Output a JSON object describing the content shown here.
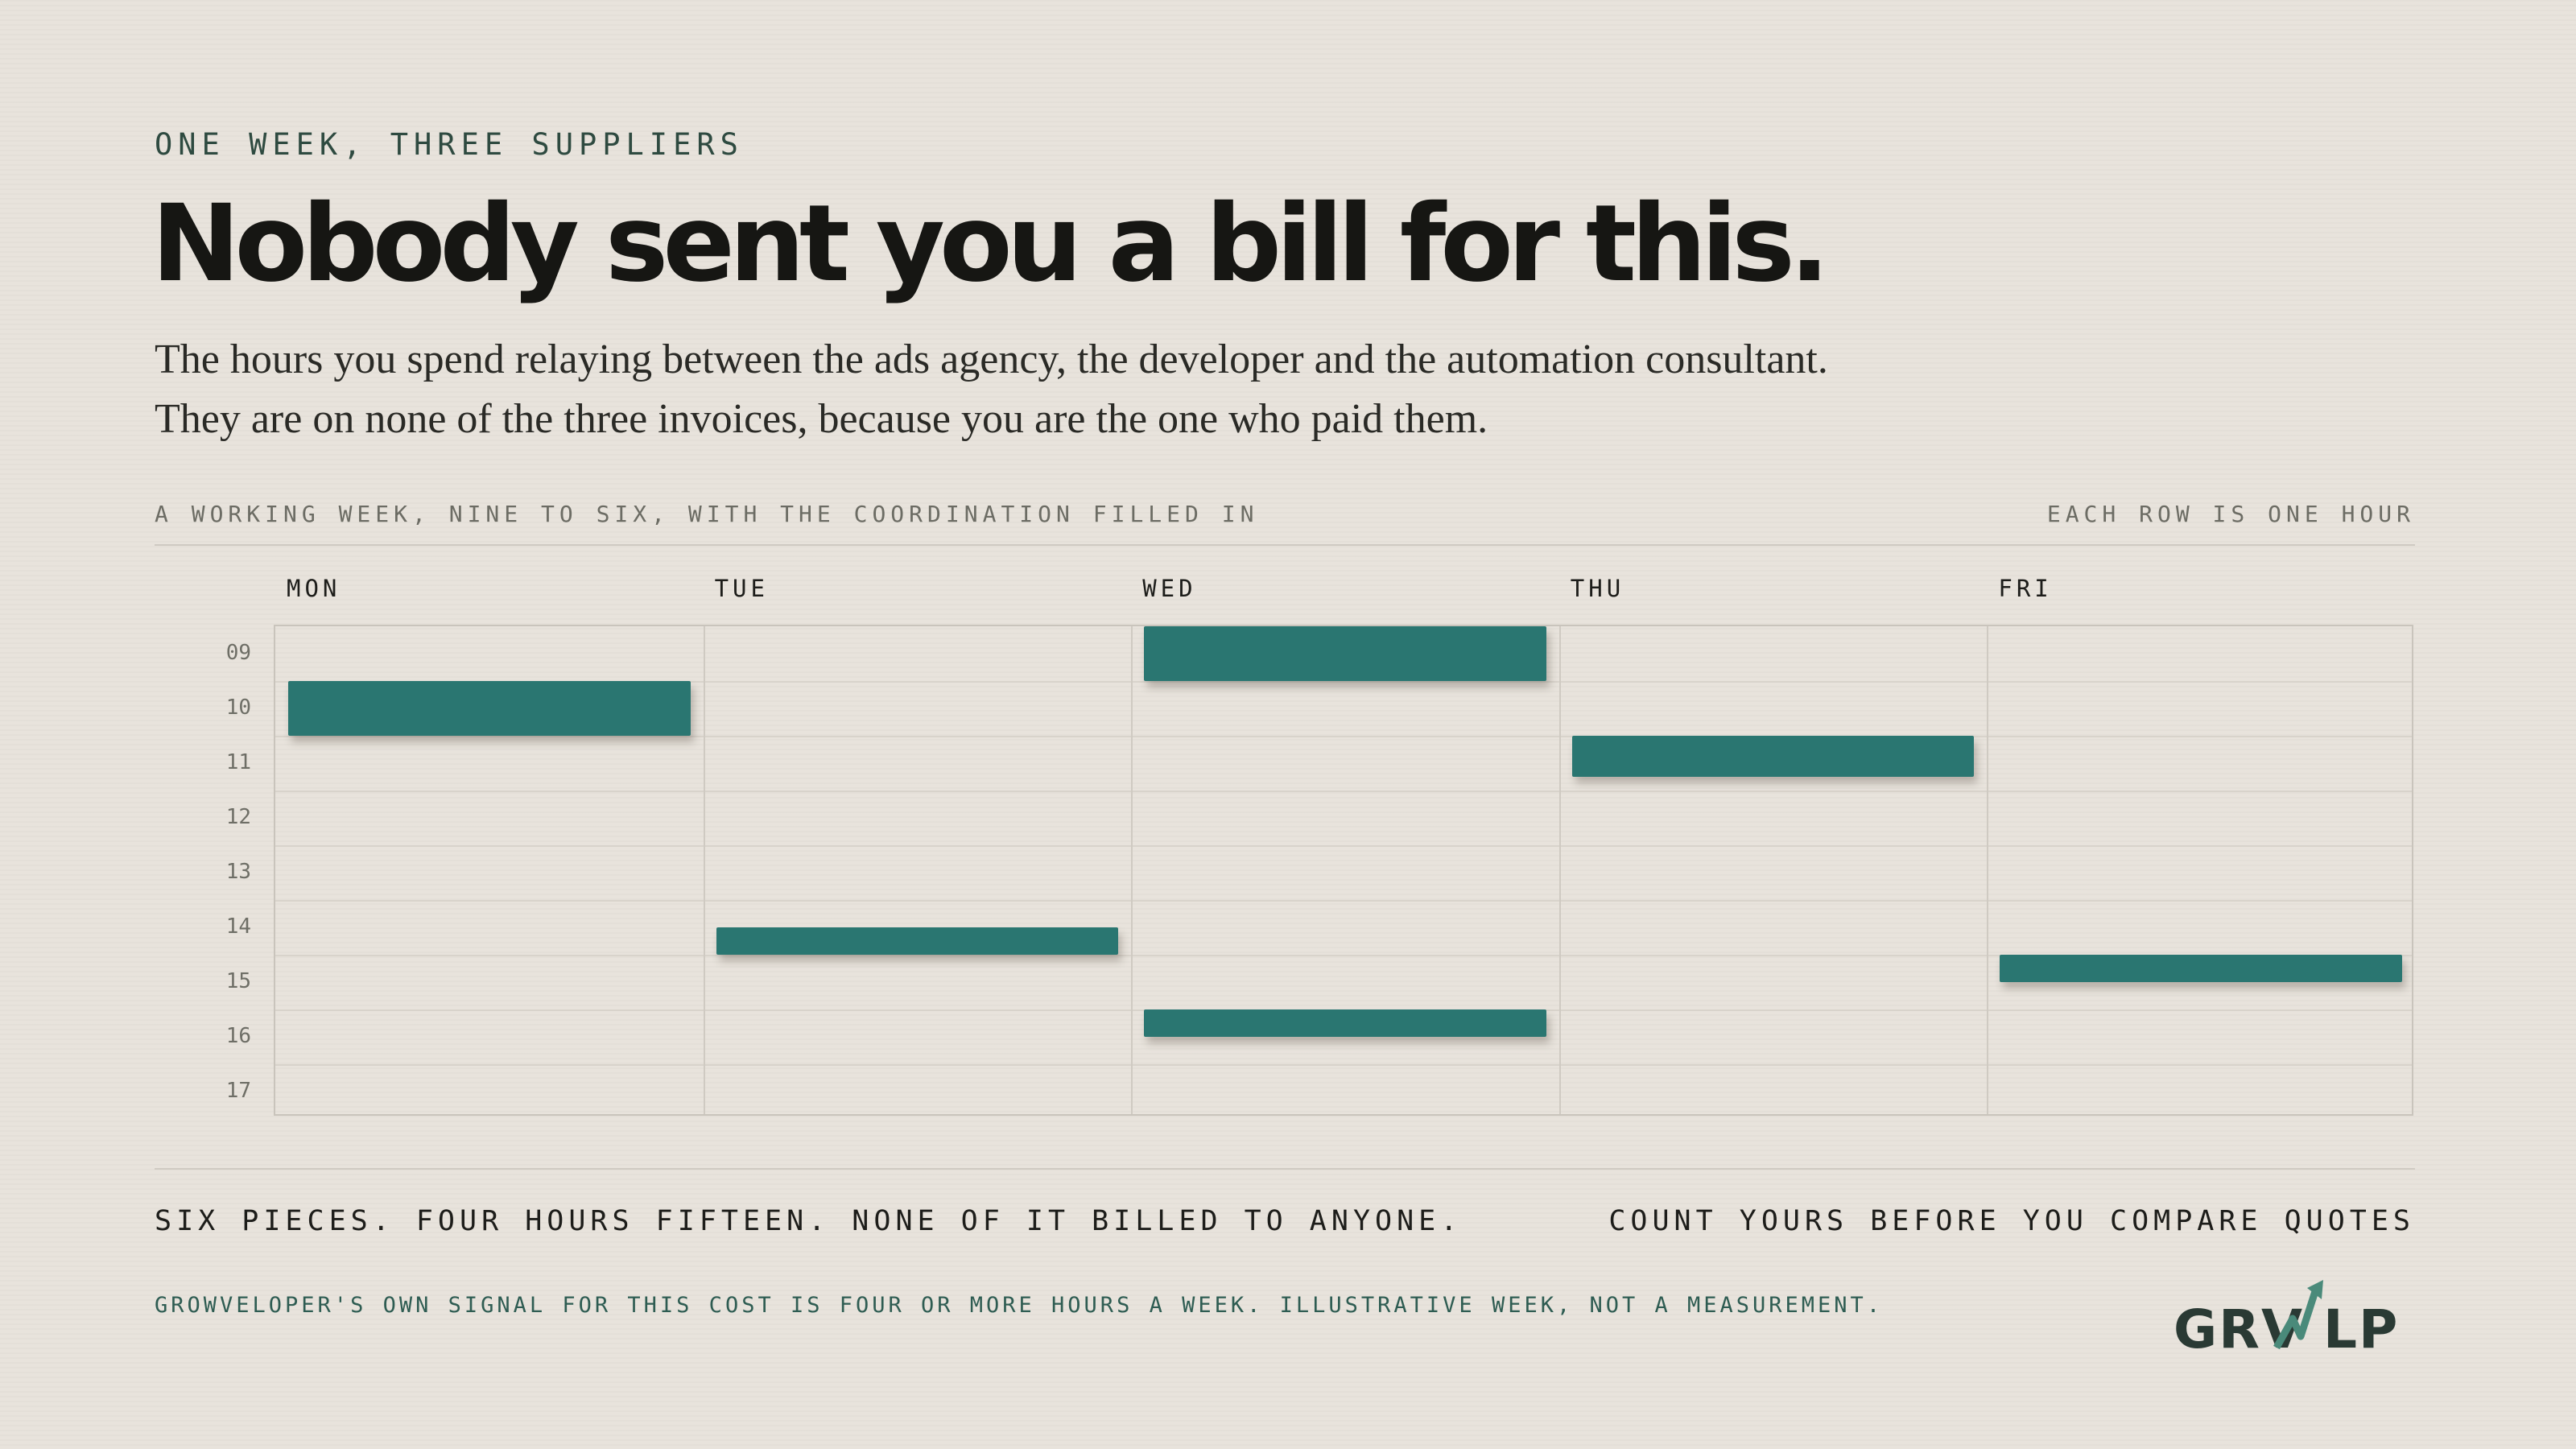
{
  "header": {
    "eyebrow": "ONE WEEK, THREE SUPPLIERS",
    "headline": "Nobody sent you a bill for this.",
    "intro": "The hours you spend relaying between the ads agency, the developer and the automation consultant. They are on none of the three invoices, because you are the one who paid them."
  },
  "chart_data": {
    "type": "table",
    "caption_left": "A WORKING WEEK, NINE TO SIX, WITH THE COORDINATION FILLED IN",
    "caption_right": "EACH ROW IS ONE HOUR",
    "days": [
      "MON",
      "TUE",
      "WED",
      "THU",
      "FRI"
    ],
    "hours": [
      "09",
      "10",
      "11",
      "12",
      "13",
      "14",
      "15",
      "16",
      "17"
    ],
    "blocks": [
      {
        "day": "MON",
        "start": 10.0,
        "end": 11.0
      },
      {
        "day": "TUE",
        "start": 14.5,
        "end": 15.0
      },
      {
        "day": "WED",
        "start": 9.0,
        "end": 10.0
      },
      {
        "day": "WED",
        "start": 16.0,
        "end": 16.5
      },
      {
        "day": "THU",
        "start": 11.0,
        "end": 11.75
      },
      {
        "day": "FRI",
        "start": 15.0,
        "end": 15.5
      }
    ],
    "block_color": "#2a7671",
    "range": [
      9,
      18
    ]
  },
  "summary": {
    "left": "SIX PIECES. FOUR HOURS FIFTEEN. NONE OF IT BILLED TO ANYONE.",
    "right": "COUNT YOURS BEFORE YOU COMPARE QUOTES"
  },
  "footnote": "GROWVELOPER'S OWN SIGNAL FOR THIS COST IS FOUR OR MORE HOURS A WEEK. ILLUSTRATIVE WEEK, NOT A MEASUREMENT.",
  "logo": {
    "part1": "GRV",
    "part2": "LP",
    "icon": "growth-arrow-icon",
    "accent": "#4a8a7a"
  }
}
